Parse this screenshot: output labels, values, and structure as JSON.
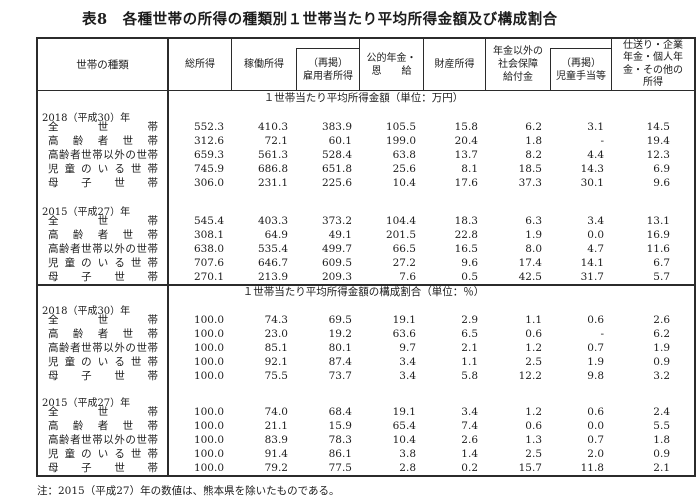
{
  "title": "表8　各種世帯の所得の種類別１世帯当たり平均所得金額及び構成割合",
  "note": "注：2015（平成27）年の数値は、熊本県を除いたものである。",
  "header": {
    "household_type": "世帯の種類",
    "columns": [
      {
        "lines": [
          "総所得"
        ]
      },
      {
        "lines": [
          "稼働所得"
        ]
      },
      {
        "lines": [
          "（再掲）",
          "雇用者所得"
        ],
        "inset": true
      },
      {
        "lines": [
          "公的年金・",
          "恩　　給"
        ]
      },
      {
        "lines": [
          "財産所得"
        ]
      },
      {
        "lines": [
          "年金以外の",
          "社会保障",
          "給付金"
        ]
      },
      {
        "lines": [
          "（再掲）",
          "児童手当等"
        ],
        "inset": true
      },
      {
        "lines": [
          "仕送り・企業",
          "年金・個人年",
          "金・その他の",
          "所得"
        ]
      }
    ]
  },
  "sections": [
    {
      "title": "１世帯当たり平均所得金額（単位：万円）",
      "blocks": [
        {
          "year": "2018（平成30）年",
          "rows": [
            {
              "label": "全世帯",
              "values": [
                "552.3",
                "410.3",
                "383.9",
                "105.5",
                "15.8",
                "6.2",
                "3.1",
                "14.5"
              ]
            },
            {
              "label": "高齢者世帯",
              "values": [
                "312.6",
                "72.1",
                "60.1",
                "199.0",
                "20.4",
                "1.8",
                "-",
                "19.4"
              ]
            },
            {
              "label": "高齢者世帯以外の世帯",
              "values": [
                "659.3",
                "561.3",
                "528.4",
                "63.8",
                "13.7",
                "8.2",
                "4.4",
                "12.3"
              ]
            },
            {
              "label": "児童のいる世帯",
              "values": [
                "745.9",
                "686.8",
                "651.8",
                "25.6",
                "8.1",
                "18.5",
                "14.3",
                "6.9"
              ]
            },
            {
              "label": "母子世帯",
              "values": [
                "306.0",
                "231.1",
                "225.6",
                "10.4",
                "17.6",
                "37.3",
                "30.1",
                "9.6"
              ]
            }
          ]
        },
        {
          "year": "2015（平成27）年",
          "rows": [
            {
              "label": "全世帯",
              "values": [
                "545.4",
                "403.3",
                "373.2",
                "104.4",
                "18.3",
                "6.3",
                "3.4",
                "13.1"
              ]
            },
            {
              "label": "高齢者世帯",
              "values": [
                "308.1",
                "64.9",
                "49.1",
                "201.5",
                "22.8",
                "1.9",
                "0.0",
                "16.9"
              ]
            },
            {
              "label": "高齢者世帯以外の世帯",
              "values": [
                "638.0",
                "535.4",
                "499.7",
                "66.5",
                "16.5",
                "8.0",
                "4.7",
                "11.6"
              ]
            },
            {
              "label": "児童のいる世帯",
              "values": [
                "707.6",
                "646.7",
                "609.5",
                "27.2",
                "9.6",
                "17.4",
                "14.1",
                "6.7"
              ]
            },
            {
              "label": "母子世帯",
              "values": [
                "270.1",
                "213.9",
                "209.3",
                "7.6",
                "0.5",
                "42.5",
                "31.7",
                "5.7"
              ]
            }
          ]
        }
      ]
    },
    {
      "title": "１世帯当たり平均所得金額の構成割合（単位：％）",
      "blocks": [
        {
          "year": "2018（平成30）年",
          "rows": [
            {
              "label": "全世帯",
              "values": [
                "100.0",
                "74.3",
                "69.5",
                "19.1",
                "2.9",
                "1.1",
                "0.6",
                "2.6"
              ]
            },
            {
              "label": "高齢者世帯",
              "values": [
                "100.0",
                "23.0",
                "19.2",
                "63.6",
                "6.5",
                "0.6",
                "-",
                "6.2"
              ]
            },
            {
              "label": "高齢者世帯以外の世帯",
              "values": [
                "100.0",
                "85.1",
                "80.1",
                "9.7",
                "2.1",
                "1.2",
                "0.7",
                "1.9"
              ]
            },
            {
              "label": "児童のいる世帯",
              "values": [
                "100.0",
                "92.1",
                "87.4",
                "3.4",
                "1.1",
                "2.5",
                "1.9",
                "0.9"
              ]
            },
            {
              "label": "母子世帯",
              "values": [
                "100.0",
                "75.5",
                "73.7",
                "3.4",
                "5.8",
                "12.2",
                "9.8",
                "3.2"
              ]
            }
          ]
        },
        {
          "year": "2015（平成27）年",
          "rows": [
            {
              "label": "全世帯",
              "values": [
                "100.0",
                "74.0",
                "68.4",
                "19.1",
                "3.4",
                "1.2",
                "0.6",
                "2.4"
              ]
            },
            {
              "label": "高齢者世帯",
              "values": [
                "100.0",
                "21.1",
                "15.9",
                "65.4",
                "7.4",
                "0.6",
                "0.0",
                "5.5"
              ]
            },
            {
              "label": "高齢者世帯以外の世帯",
              "values": [
                "100.0",
                "83.9",
                "78.3",
                "10.4",
                "2.6",
                "1.3",
                "0.7",
                "1.8"
              ]
            },
            {
              "label": "児童のいる世帯",
              "values": [
                "100.0",
                "91.4",
                "86.1",
                "3.8",
                "1.4",
                "2.5",
                "2.0",
                "0.9"
              ]
            },
            {
              "label": "母子世帯",
              "values": [
                "100.0",
                "79.2",
                "77.5",
                "2.8",
                "0.2",
                "15.7",
                "11.8",
                "2.1"
              ]
            }
          ]
        }
      ]
    }
  ]
}
